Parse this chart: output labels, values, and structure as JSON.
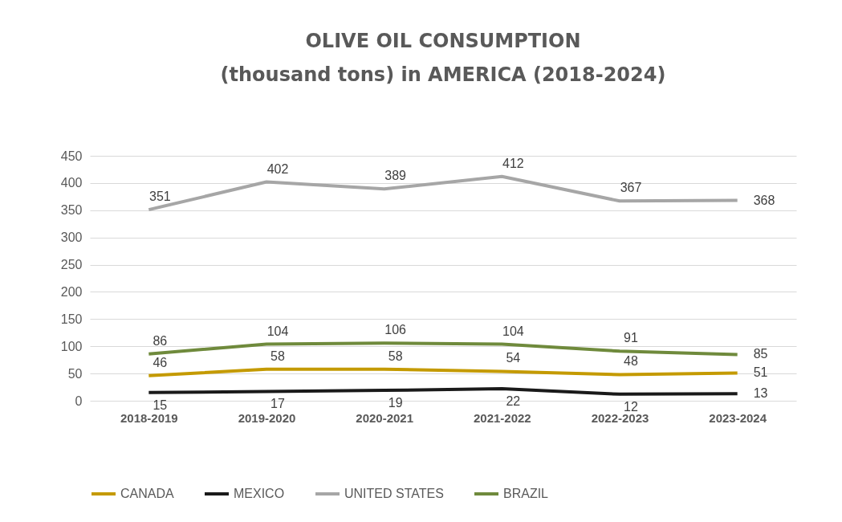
{
  "chart_data": {
    "type": "line",
    "title": [
      "OLIVE OIL CONSUMPTION",
      "(thousand tons) in AMERICA (2018-2024)"
    ],
    "categories": [
      "2018-2019",
      "2019-2020",
      "2020-2021",
      "2021-2022",
      "2022-2023",
      "2023-2024"
    ],
    "series": [
      {
        "name": "CANADA",
        "color": "#c49a00",
        "values": [
          46,
          58,
          58,
          54,
          48,
          51
        ]
      },
      {
        "name": "MEXICO",
        "color": "#1a1a1a",
        "values": [
          15,
          17,
          19,
          22,
          12,
          13
        ]
      },
      {
        "name": "UNITED STATES",
        "color": "#a6a6a6",
        "values": [
          351,
          402,
          389,
          412,
          367,
          368
        ]
      },
      {
        "name": "BRAZIL",
        "color": "#6f8a3c",
        "values": [
          86,
          104,
          106,
          104,
          91,
          85
        ]
      }
    ],
    "ylim": [
      0,
      450
    ],
    "yticks": [
      0,
      50,
      100,
      150,
      200,
      250,
      300,
      350,
      400,
      450
    ],
    "grid": "y",
    "legend": "bottom",
    "data_labels": true,
    "marker": "none"
  }
}
